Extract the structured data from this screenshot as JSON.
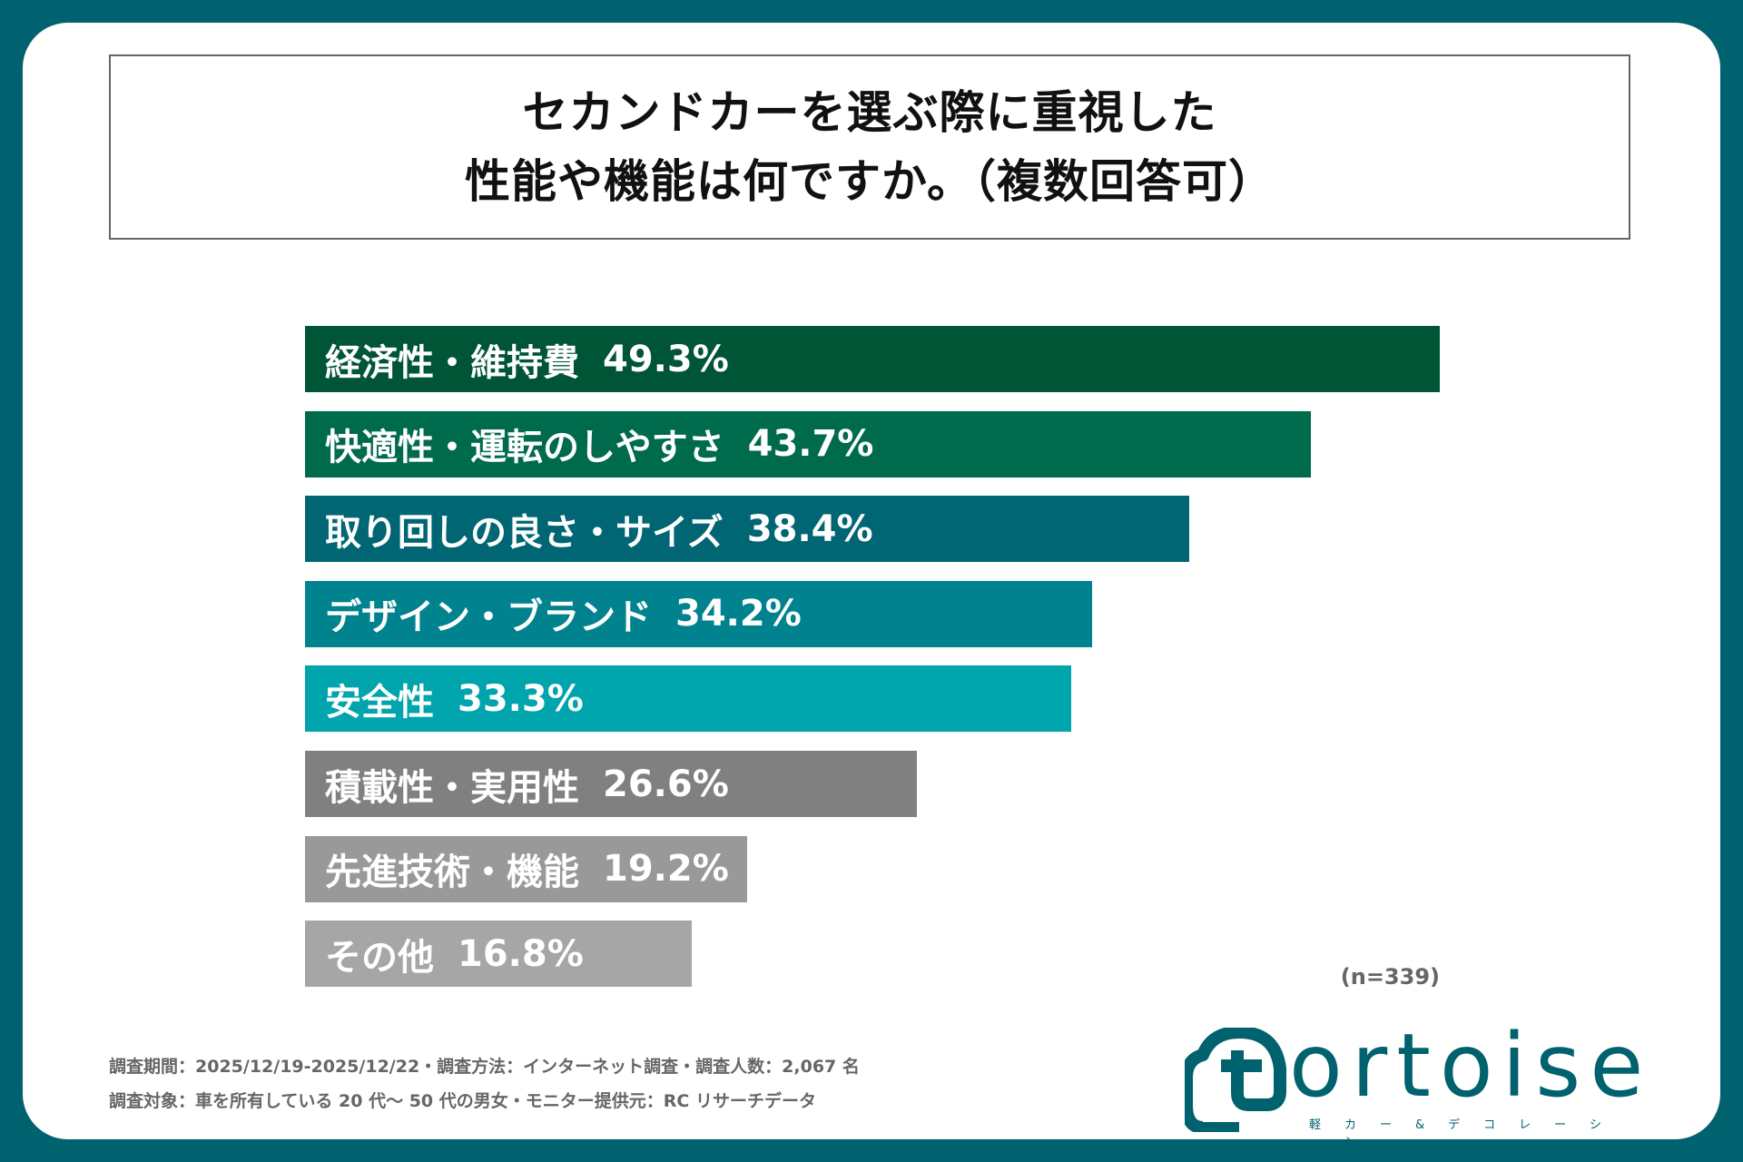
{
  "title": {
    "line1": "セカンドカーを選ぶ際に重視した",
    "line2": "性能や機能は何ですか。（複数回答可）"
  },
  "chart_data": {
    "type": "bar",
    "orientation": "horizontal",
    "title": "セカンドカーを選ぶ際に重視した性能や機能は何ですか。（複数回答可）",
    "categories": [
      "経済性・維持費",
      "快適性・運転のしやすさ",
      "取り回しの良さ・サイズ",
      "デザイン・ブランド",
      "安全性",
      "積載性・実用性",
      "先進技術・機能",
      "その他"
    ],
    "values": [
      49.3,
      43.7,
      38.4,
      34.2,
      33.3,
      26.6,
      19.2,
      16.8
    ],
    "labels": [
      "49.3%",
      "43.7%",
      "38.4%",
      "34.2%",
      "33.3%",
      "26.6%",
      "19.2%",
      "16.8%"
    ],
    "colors": [
      "#005537",
      "#006b4c",
      "#006673",
      "#00828f",
      "#00a4ad",
      "#808080",
      "#999999",
      "#a6a6a6"
    ],
    "unit": "%",
    "grid": false,
    "note": "(n=339)"
  },
  "footer": {
    "line1": "調査期間：2025/12/19-2025/12/22・調査方法：インターネット調査・調査人数：2,067 名",
    "line2": "調査対象：車を所有している 20 代〜 50 代の男女・モニター提供元：RC リサーチデータ"
  },
  "logo": {
    "word": "ortoise",
    "full": "tortoise",
    "sub": "軽カー&デコレーション",
    "color": "#00626e"
  }
}
